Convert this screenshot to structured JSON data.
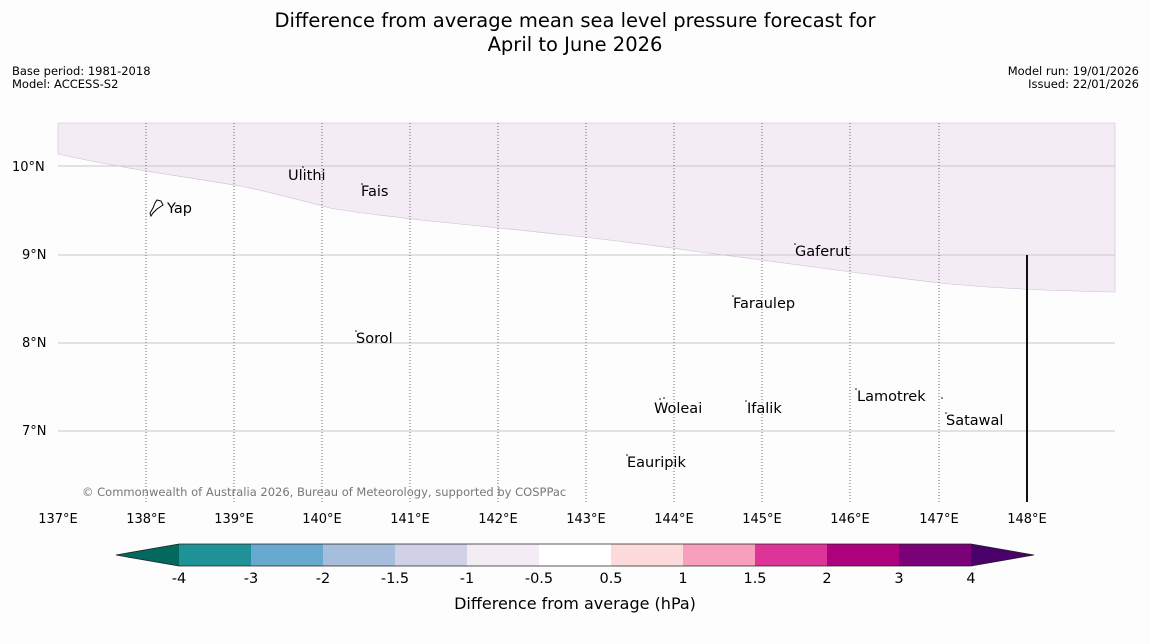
{
  "header": {
    "title_line1": "Difference from average mean sea level pressure forecast for",
    "title_line2": "April to June 2026",
    "base_period": "Base period: 1981-2018",
    "model": "Model: ACCESS-S2",
    "model_run": "Model run: 19/01/2026",
    "issued": "Issued: 22/01/2026"
  },
  "map": {
    "lon_labels": [
      "137°E",
      "138°E",
      "139°E",
      "140°E",
      "141°E",
      "142°E",
      "143°E",
      "144°E",
      "145°E",
      "146°E",
      "147°E",
      "148°E"
    ],
    "lat_labels": [
      "10°N",
      "9°N",
      "8°N",
      "7°N"
    ],
    "places": [
      {
        "name": "Yap"
      },
      {
        "name": "Ulithi"
      },
      {
        "name": "Fais"
      },
      {
        "name": "Gaferut"
      },
      {
        "name": "Faraulep"
      },
      {
        "name": "Sorol"
      },
      {
        "name": "Lamotrek"
      },
      {
        "name": "Woleai"
      },
      {
        "name": "Ifalik"
      },
      {
        "name": "Satawal"
      },
      {
        "name": "Eauripik"
      }
    ],
    "copyright": "© Commonwealth of Australia 2026, Bureau of Meteorology, supported by COSPPac",
    "anomaly_region": {
      "category": "-1 to -0.5",
      "color": "#f4ecf5"
    }
  },
  "colorbar": {
    "label": "Difference from average (hPa)",
    "ticks": [
      "-4",
      "-3",
      "-2",
      "-1.5",
      "-1",
      "-0.5",
      "0.5",
      "1",
      "1.5",
      "2",
      "3",
      "4"
    ],
    "colors": [
      "#03695f",
      "#1e9297",
      "#67a9cf",
      "#a6bddb",
      "#d0d1e6",
      "#f4ecf5",
      "#ffffff",
      "#fddbda",
      "#f89fbd",
      "#de3498",
      "#ae017e",
      "#7a0177",
      "#49006a"
    ]
  }
}
